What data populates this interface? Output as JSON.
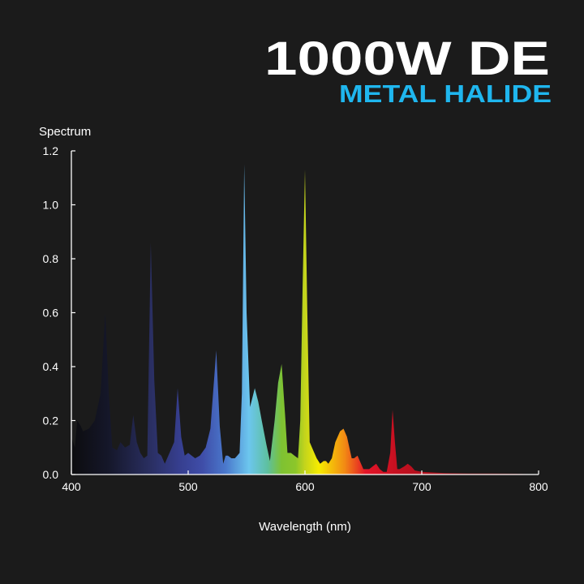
{
  "header": {
    "title": "1000W DE",
    "subtitle": "METAL HALIDE",
    "title_color": "#ffffff",
    "subtitle_color": "#1fb6ee"
  },
  "chart_data": {
    "type": "area",
    "title": "1000W DE METAL HALIDE",
    "xlabel": "Wavelength (nm)",
    "ylabel": "Spectrum",
    "xlim": [
      400,
      800
    ],
    "ylim": [
      0,
      1.2
    ],
    "x_ticks": [
      400,
      500,
      600,
      700,
      800
    ],
    "x_tick_labels": [
      "400",
      "500",
      "600",
      "700",
      "800"
    ],
    "y_ticks": [
      0,
      0.2,
      0.4,
      0.6,
      0.8,
      1.0,
      1.2
    ],
    "y_tick_labels": [
      "0.0",
      "0.2",
      "0.4",
      "0.6",
      "0.8",
      "1.0",
      "1.2"
    ],
    "grid": false,
    "fill": "spectral gradient (wavelength colors)",
    "background_color": "#1b1b1b",
    "axis_color": "#ffffff",
    "series": [
      {
        "x": [
          400,
          403,
          405,
          408,
          410,
          415,
          420,
          425,
          429,
          432,
          435,
          439,
          442,
          446,
          450,
          453,
          456,
          459,
          462,
          465,
          468,
          471,
          474,
          477,
          480,
          483,
          485,
          488,
          491,
          494,
          497,
          500,
          503,
          506,
          510,
          515,
          519,
          524,
          527,
          530,
          532,
          534,
          537,
          540,
          542,
          544,
          546,
          548,
          550,
          553,
          557,
          560,
          563,
          567,
          570,
          574,
          577,
          580,
          583,
          585,
          588,
          591,
          594,
          596,
          598,
          600,
          602,
          604,
          607,
          610,
          613,
          616,
          618,
          620,
          623,
          626,
          630,
          633,
          636,
          640,
          642,
          645,
          648,
          650,
          652,
          655,
          658,
          661,
          664,
          667,
          670,
          673,
          675,
          677,
          679,
          681,
          685,
          688,
          691,
          694,
          700,
          720,
          740,
          760,
          780,
          800
        ],
        "y": [
          0.14,
          0.1,
          0.2,
          0.18,
          0.16,
          0.17,
          0.2,
          0.3,
          0.6,
          0.3,
          0.1,
          0.09,
          0.12,
          0.1,
          0.11,
          0.22,
          0.12,
          0.08,
          0.06,
          0.07,
          0.86,
          0.35,
          0.08,
          0.07,
          0.04,
          0.07,
          0.09,
          0.12,
          0.32,
          0.14,
          0.07,
          0.08,
          0.07,
          0.06,
          0.07,
          0.1,
          0.17,
          0.46,
          0.18,
          0.04,
          0.07,
          0.07,
          0.06,
          0.06,
          0.07,
          0.08,
          0.3,
          1.15,
          0.6,
          0.25,
          0.32,
          0.27,
          0.2,
          0.11,
          0.05,
          0.2,
          0.34,
          0.41,
          0.22,
          0.08,
          0.08,
          0.07,
          0.06,
          0.2,
          0.7,
          1.13,
          0.6,
          0.12,
          0.09,
          0.06,
          0.04,
          0.05,
          0.05,
          0.04,
          0.06,
          0.12,
          0.16,
          0.17,
          0.14,
          0.06,
          0.06,
          0.07,
          0.04,
          0.02,
          0.02,
          0.02,
          0.03,
          0.04,
          0.02,
          0.01,
          0.01,
          0.08,
          0.24,
          0.12,
          0.02,
          0.02,
          0.03,
          0.04,
          0.03,
          0.015,
          0.01,
          0.005,
          0.004,
          0.004,
          0.003,
          0.0
        ]
      }
    ]
  }
}
